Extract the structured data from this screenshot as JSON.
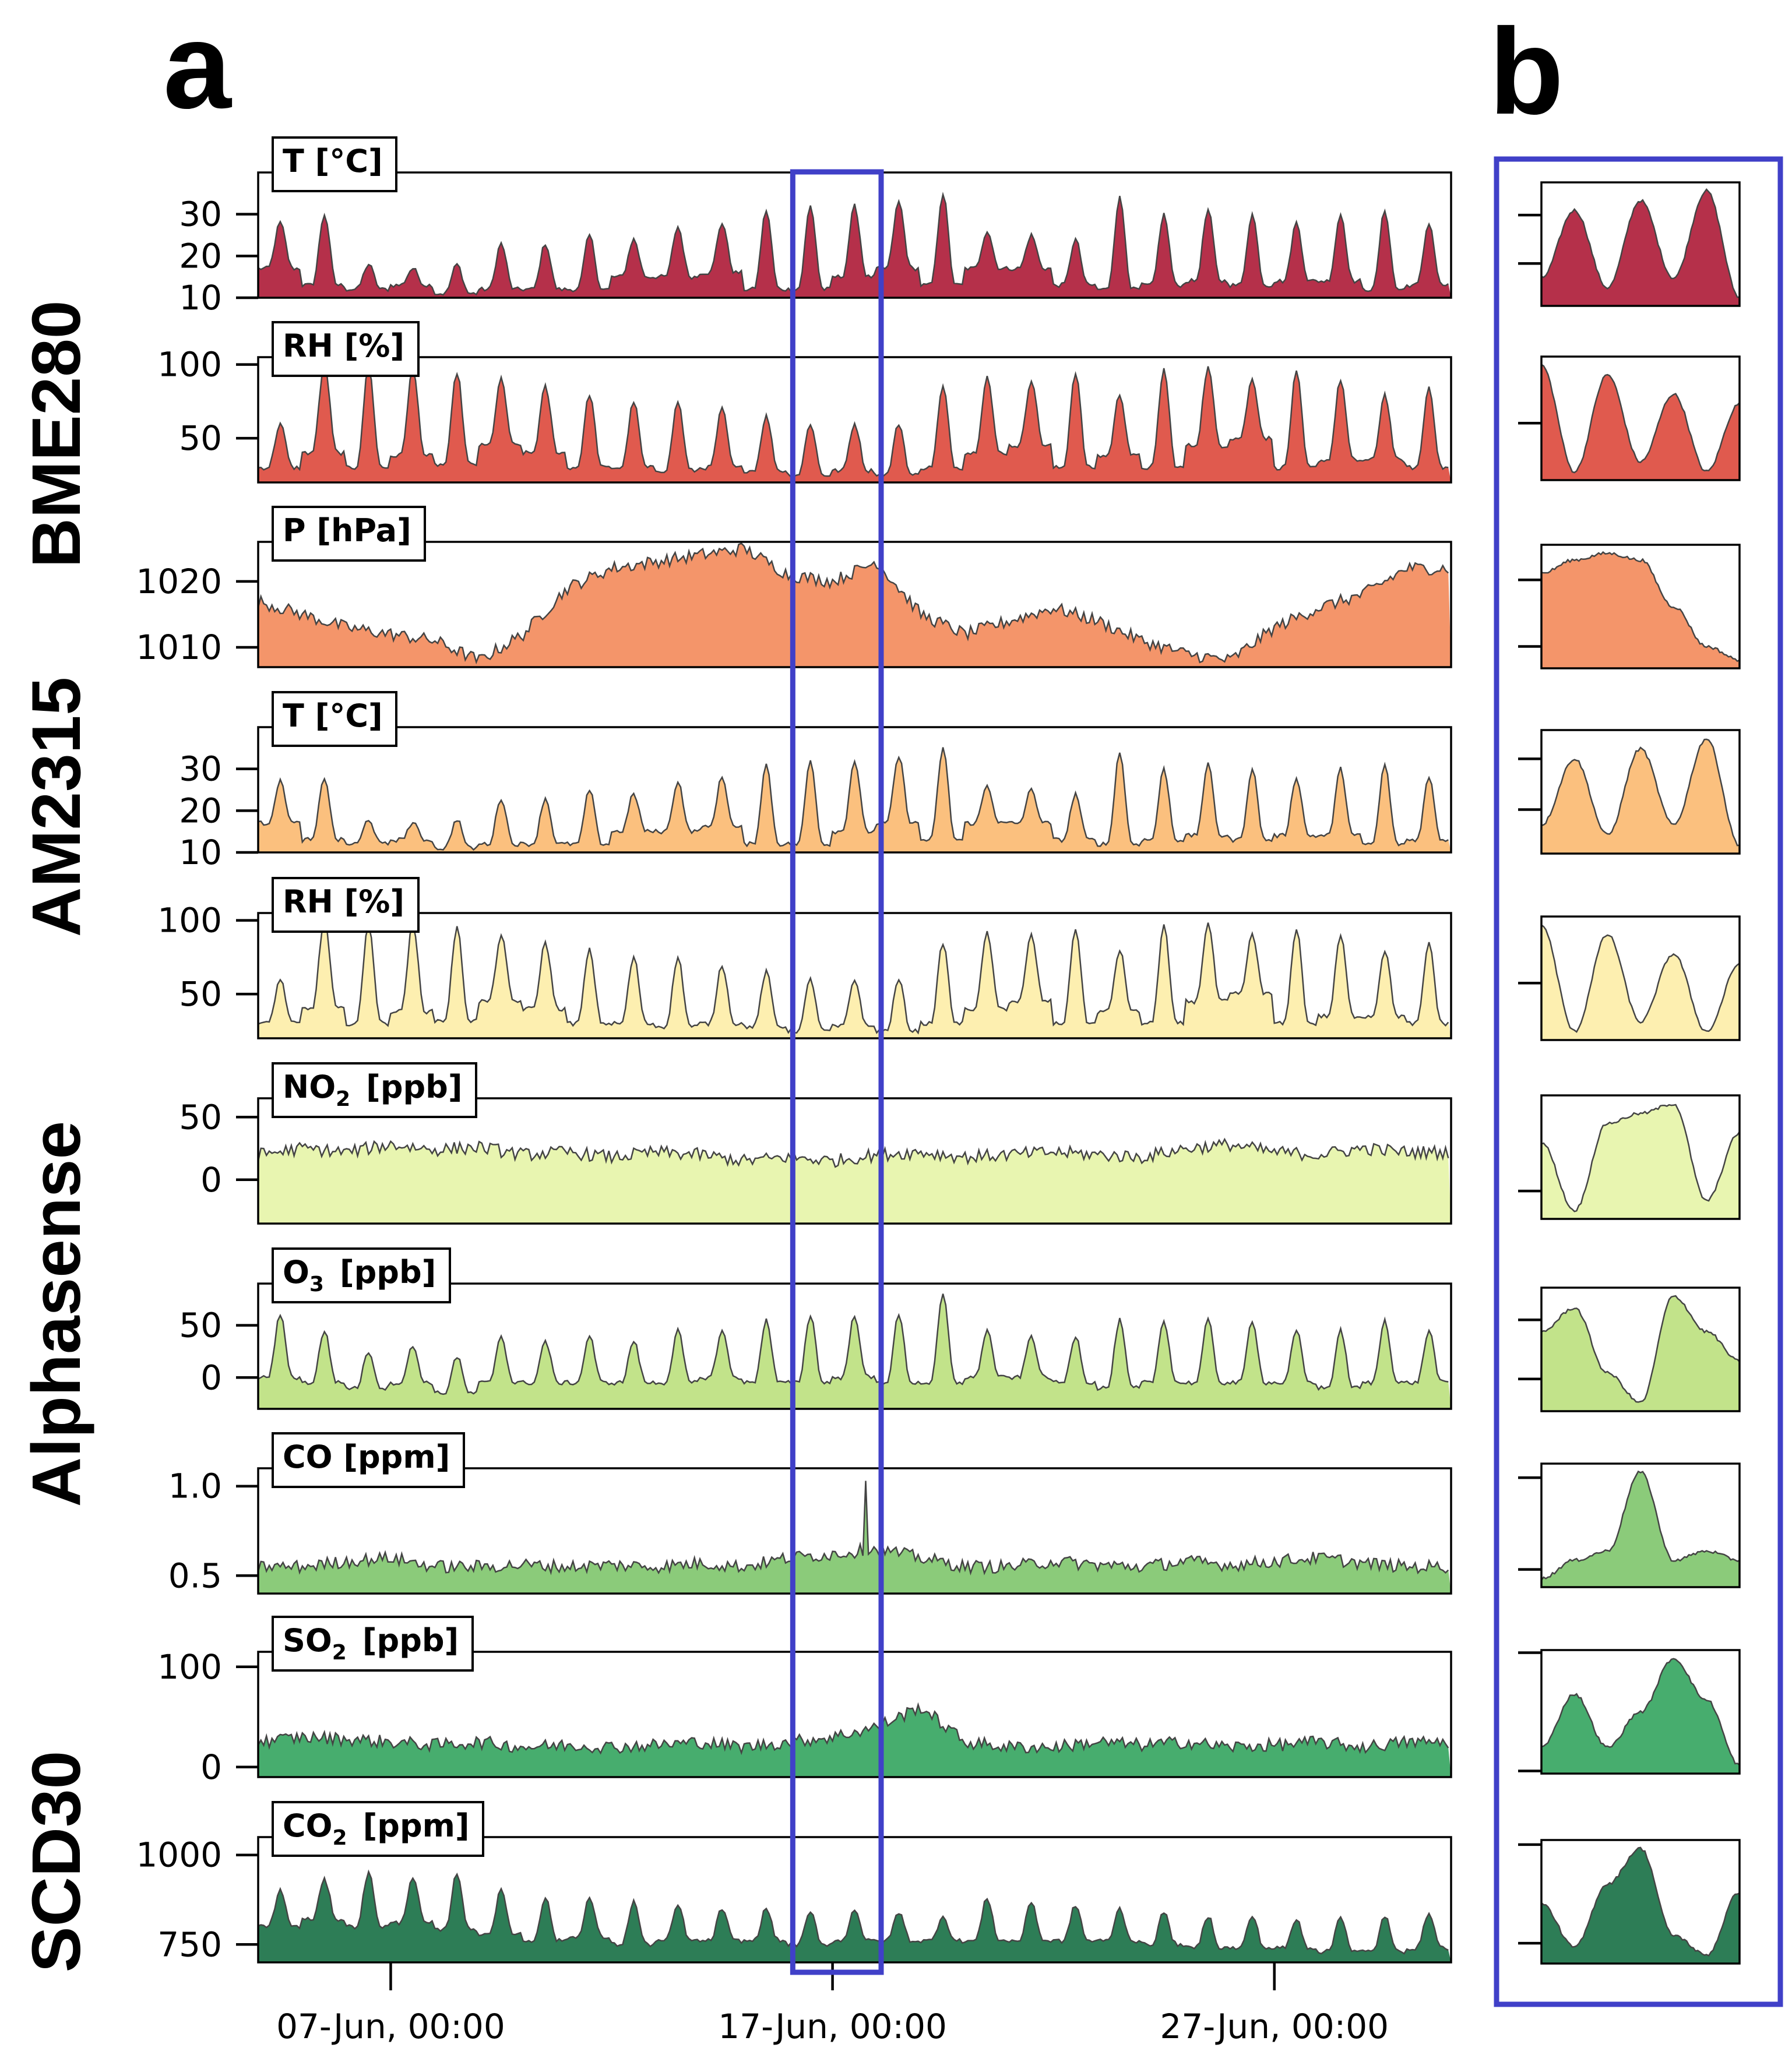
{
  "panel_labels": {
    "a": "a",
    "b": "b"
  },
  "group_labels": [
    "BME280",
    "AM2315",
    "Alphasense",
    "SCD30"
  ],
  "x_axis": {
    "ticks": [
      "07-Jun, 00:00",
      "17-Jun, 00:00",
      "27-Jun, 00:00"
    ]
  },
  "highlight_color": "#4040c8",
  "chart_data": [
    {
      "type": "area",
      "sensor": "BME280",
      "title": "T [°C]",
      "color": "#b5304a",
      "ylim": [
        10,
        40
      ],
      "yticks": [
        "10",
        "20",
        "30"
      ],
      "x_range": [
        "2023-06-04",
        "2023-07-01"
      ],
      "daily_min": [
        17,
        13,
        12,
        13,
        11,
        12,
        12,
        12,
        15,
        15,
        16,
        12,
        12,
        15,
        17,
        13,
        17,
        17,
        13,
        12,
        13,
        14,
        13,
        14,
        14,
        12,
        13,
        14
      ],
      "daily_max": [
        28,
        30,
        18,
        17,
        18,
        23,
        23,
        25,
        24,
        27,
        28,
        31,
        32,
        32,
        33,
        35,
        26,
        25,
        24,
        34,
        30,
        31,
        30,
        28,
        30,
        31,
        28,
        30
      ],
      "zoom": [
        17,
        31,
        15,
        33,
        17,
        35,
        13
      ]
    },
    {
      "type": "area",
      "sensor": "BME280",
      "title": "RH [%]",
      "color": "#e05a4e",
      "ylim": [
        20,
        105
      ],
      "yticks": [
        "50",
        "100"
      ],
      "x_range": [
        "2023-06-04",
        "2023-07-01"
      ],
      "daily_min": [
        30,
        40,
        30,
        38,
        32,
        45,
        40,
        30,
        30,
        28,
        30,
        28,
        25,
        28,
        25,
        30,
        40,
        45,
        30,
        38,
        30,
        45,
        50,
        30,
        35,
        35,
        30,
        30
      ],
      "daily_max": [
        60,
        100,
        98,
        97,
        95,
        90,
        85,
        80,
        75,
        75,
        70,
        65,
        60,
        60,
        60,
        85,
        92,
        90,
        95,
        80,
        97,
        98,
        90,
        95,
        90,
        80,
        85,
        97
      ],
      "zoom": [
        80,
        25,
        75,
        30,
        65,
        25,
        60
      ]
    },
    {
      "type": "area",
      "sensor": "BME280",
      "title": "P [hPa]",
      "color": "#f4956a",
      "ylim": [
        1007,
        1026
      ],
      "yticks": [
        "1010",
        "1020"
      ],
      "x_range": [
        "2023-06-04",
        "2023-07-01"
      ],
      "daily_mean": [
        1017,
        1015,
        1013,
        1012,
        1011,
        1008,
        1012,
        1019,
        1022,
        1023,
        1024,
        1025,
        1021,
        1020,
        1023,
        1015,
        1012,
        1014,
        1016,
        1014,
        1011,
        1009,
        1008,
        1013,
        1016,
        1018,
        1022,
        1015
      ],
      "zoom": [
        1021,
        1023,
        1024,
        1023,
        1016,
        1010,
        1008
      ]
    },
    {
      "type": "area",
      "sensor": "AM2315",
      "title": "T [°C]",
      "color": "#fbc07e",
      "ylim": [
        10,
        40
      ],
      "yticks": [
        "10",
        "20",
        "30"
      ],
      "x_range": [
        "2023-06-04",
        "2023-07-01"
      ],
      "daily_min": [
        17,
        13,
        12,
        13,
        11,
        12,
        12,
        12,
        15,
        15,
        16,
        12,
        12,
        15,
        17,
        13,
        17,
        17,
        13,
        12,
        13,
        14,
        13,
        14,
        14,
        12,
        13,
        14
      ],
      "daily_max": [
        27,
        28,
        18,
        17,
        18,
        23,
        23,
        25,
        24,
        27,
        28,
        31,
        32,
        32,
        33,
        35,
        26,
        25,
        24,
        34,
        30,
        31,
        30,
        28,
        30,
        31,
        28,
        30
      ],
      "zoom": [
        17,
        30,
        15,
        32,
        17,
        34,
        13
      ]
    },
    {
      "type": "area",
      "sensor": "AM2315",
      "title": "RH [%]",
      "color": "#fdefb0",
      "ylim": [
        20,
        105
      ],
      "yticks": [
        "50",
        "100"
      ],
      "x_range": [
        "2023-06-04",
        "2023-07-01"
      ],
      "daily_min": [
        30,
        40,
        30,
        38,
        32,
        45,
        40,
        30,
        30,
        28,
        30,
        28,
        25,
        28,
        25,
        30,
        40,
        45,
        30,
        38,
        30,
        45,
        50,
        30,
        35,
        35,
        30,
        30
      ],
      "daily_max": [
        60,
        100,
        98,
        97,
        95,
        90,
        85,
        80,
        75,
        75,
        70,
        65,
        60,
        60,
        60,
        85,
        92,
        90,
        95,
        80,
        97,
        98,
        90,
        95,
        90,
        80,
        85,
        97
      ],
      "zoom": [
        80,
        25,
        75,
        30,
        65,
        25,
        60
      ]
    },
    {
      "type": "area",
      "sensor": "Alphasense",
      "title": "NO",
      "subscript": "2",
      "unit": "[ppb]",
      "color": "#e8f5b0",
      "ylim": [
        -35,
        65
      ],
      "yticks": [
        "0",
        "50"
      ],
      "x_range": [
        "2023-06-04",
        "2023-07-01"
      ],
      "daily_mean": [
        20,
        25,
        22,
        28,
        24,
        26,
        20,
        22,
        18,
        22,
        20,
        15,
        18,
        15,
        20,
        22,
        18,
        20,
        22,
        20,
        18,
        25,
        28,
        22,
        20,
        25,
        22,
        25
      ],
      "zoom": [
        25,
        -10,
        35,
        40,
        45,
        -5,
        30
      ]
    },
    {
      "type": "area",
      "sensor": "Alphasense",
      "title": "O",
      "subscript": "3",
      "unit": "[ppb]",
      "color": "#c2e38a",
      "ylim": [
        -30,
        90
      ],
      "yticks": [
        "0",
        "50"
      ],
      "x_range": [
        "2023-06-04",
        "2023-07-01"
      ],
      "daily_min": [
        0,
        -5,
        -10,
        -5,
        -15,
        -5,
        -5,
        -5,
        -5,
        -5,
        0,
        -5,
        -5,
        0,
        -5,
        -5,
        0,
        0,
        -5,
        -10,
        -5,
        -5,
        -5,
        -5,
        -10,
        -5,
        -5,
        -5
      ],
      "daily_max": [
        60,
        45,
        25,
        30,
        20,
        40,
        35,
        40,
        35,
        45,
        45,
        55,
        60,
        60,
        60,
        80,
        45,
        40,
        40,
        55,
        55,
        55,
        55,
        45,
        45,
        55,
        45,
        50
      ],
      "zoom": [
        40,
        60,
        5,
        -20,
        70,
        40,
        15
      ]
    },
    {
      "type": "area",
      "sensor": "Alphasense",
      "title": "CO [ppm]",
      "color": "#8bcb7a",
      "ylim": [
        0.4,
        1.1
      ],
      "yticks": [
        "0.5",
        "1.0"
      ],
      "x_range": [
        "2023-06-04",
        "2023-07-01"
      ],
      "daily_mean": [
        0.55,
        0.55,
        0.58,
        0.6,
        0.55,
        0.55,
        0.56,
        0.55,
        0.56,
        0.55,
        0.57,
        0.55,
        0.6,
        0.62,
        0.65,
        0.6,
        0.55,
        0.55,
        0.58,
        0.56,
        0.55,
        0.58,
        0.56,
        0.58,
        0.6,
        0.57,
        0.55,
        0.57
      ],
      "spike": {
        "date": "2023-06-17",
        "value": 1.03
      },
      "zoom": [
        0.45,
        0.55,
        0.6,
        1.03,
        0.55,
        0.6,
        0.55
      ]
    },
    {
      "type": "area",
      "sensor": "Alphasense",
      "title": "SO",
      "subscript": "2",
      "unit": "[ppb]",
      "color": "#47ad6e",
      "ylim": [
        -10,
        115
      ],
      "yticks": [
        "0",
        "100"
      ],
      "x_range": [
        "2023-06-04",
        "2023-07-01"
      ],
      "daily_mean": [
        25,
        30,
        28,
        25,
        22,
        25,
        20,
        22,
        20,
        22,
        25,
        20,
        25,
        30,
        40,
        60,
        25,
        20,
        20,
        25,
        22,
        25,
        20,
        22,
        25,
        20,
        25,
        20
      ],
      "zoom": [
        20,
        65,
        20,
        50,
        95,
        60,
        5
      ]
    },
    {
      "type": "area",
      "sensor": "SCD30",
      "title": "CO",
      "subscript": "2",
      "unit": "[ppm]",
      "color": "#2d7d56",
      "ylim": [
        700,
        1050
      ],
      "yticks": [
        "750",
        "1000"
      ],
      "x_range": [
        "2023-06-04",
        "2023-07-01"
      ],
      "daily_min": [
        800,
        820,
        800,
        810,
        790,
        780,
        760,
        770,
        750,
        760,
        760,
        760,
        750,
        760,
        760,
        760,
        760,
        760,
        760,
        760,
        750,
        740,
        740,
        740,
        730,
        730,
        740,
        740
      ],
      "daily_max": [
        900,
        930,
        950,
        940,
        950,
        900,
        880,
        880,
        870,
        860,
        850,
        850,
        840,
        850,
        840,
        830,
        880,
        870,
        860,
        850,
        840,
        830,
        830,
        820,
        830,
        830,
        840,
        850
      ],
      "zoom": [
        850,
        740,
        900,
        990,
        770,
        720,
        880
      ]
    }
  ]
}
